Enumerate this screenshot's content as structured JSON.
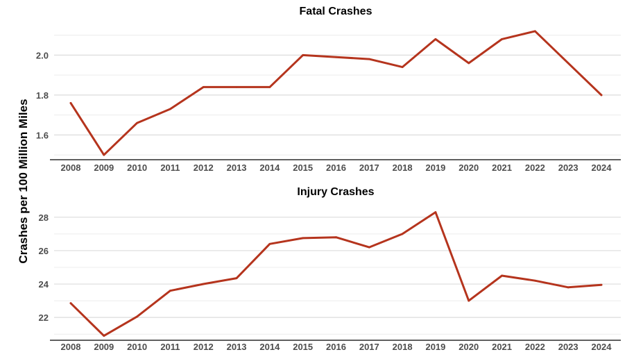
{
  "shared_ylabel": "Crashes per 100 Million Miles",
  "colors": {
    "line": "#b5341d",
    "grid": "#dcdcdc",
    "axis": "#000000"
  },
  "chart_data": [
    {
      "type": "line",
      "title": "Fatal Crashes",
      "xlabel": "",
      "x": [
        2008,
        2009,
        2010,
        2011,
        2012,
        2013,
        2014,
        2015,
        2016,
        2017,
        2018,
        2019,
        2020,
        2021,
        2022,
        2023,
        2024
      ],
      "values": [
        1.76,
        1.5,
        1.66,
        1.73,
        1.84,
        1.84,
        1.84,
        2.0,
        1.99,
        1.98,
        1.94,
        2.08,
        1.96,
        2.08,
        2.12,
        1.96,
        1.8
      ],
      "ylim": [
        1.49,
        2.13
      ],
      "yticks": [
        1.6,
        1.8,
        2.0
      ],
      "ytick_labels": [
        "1.6",
        "1.8",
        "2.0"
      ],
      "minor_yticks": [
        1.5,
        1.7,
        1.9,
        2.1
      ],
      "grid": true
    },
    {
      "type": "line",
      "title": "Injury Crashes",
      "xlabel": "",
      "x": [
        2008,
        2009,
        2010,
        2011,
        2012,
        2013,
        2014,
        2015,
        2016,
        2017,
        2018,
        2019,
        2020,
        2021,
        2022,
        2023,
        2024
      ],
      "values": [
        22.85,
        20.9,
        22.05,
        23.6,
        24.0,
        24.35,
        26.4,
        26.75,
        26.8,
        26.2,
        27.0,
        28.3,
        23.0,
        24.5,
        24.2,
        23.8,
        23.95
      ],
      "ylim": [
        20.8,
        28.7
      ],
      "yticks": [
        22,
        24,
        26,
        28
      ],
      "ytick_labels": [
        "22",
        "24",
        "26",
        "28"
      ],
      "minor_yticks": [
        21,
        23,
        25,
        27
      ],
      "grid": true
    }
  ]
}
